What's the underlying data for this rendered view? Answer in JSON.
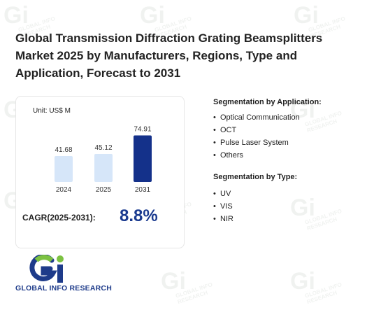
{
  "title": "Global Transmission Diffraction Grating Beamsplitters Market 2025 by Manufacturers, Regions, Type and Application, Forecast to 2031",
  "chart_data": {
    "type": "bar",
    "unit_label": "Unit: US$ M",
    "categories": [
      "2024",
      "2025",
      "2031"
    ],
    "values": [
      41.68,
      45.12,
      74.91
    ],
    "value_labels": [
      "41.68",
      "45.12",
      "74.91"
    ],
    "ylim": [
      0,
      80
    ],
    "colors": [
      "#d6e6f9",
      "#d6e6f9",
      "#14318a"
    ],
    "grid": false
  },
  "cagr": {
    "label": "CAGR(2025-2031):",
    "value": "8.8%"
  },
  "segmentation_application": {
    "heading": "Segmentation by Application:",
    "items": [
      "Optical Communication",
      "OCT",
      "Pulse Laser System",
      "Others"
    ]
  },
  "segmentation_type": {
    "heading": "Segmentation by Type:",
    "items": [
      "UV",
      "VIS",
      "NIR"
    ]
  },
  "bullet": "•",
  "logo": {
    "text": "GLOBAL INFO RESEARCH",
    "mark": "Gi",
    "colors": {
      "blue": "#1e3b8a",
      "green": "#7cc242"
    }
  },
  "watermark": {
    "mark": "Gi",
    "text": "GLOBAL INFO RESEARCH"
  }
}
